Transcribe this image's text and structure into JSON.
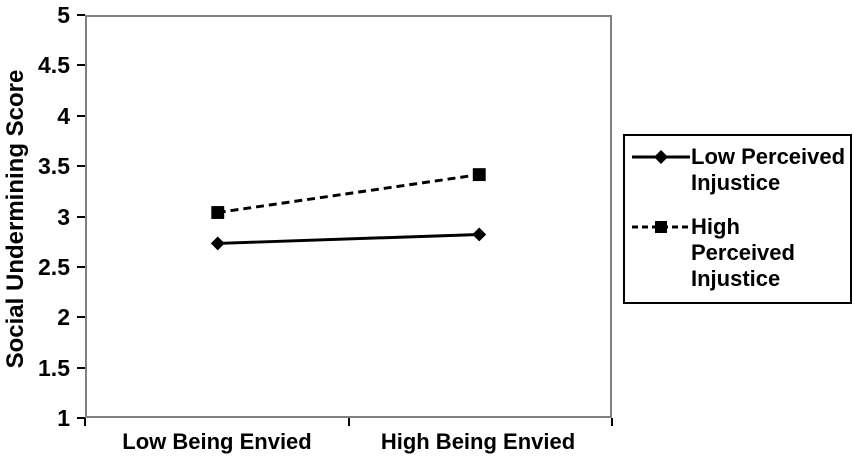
{
  "chart_data": {
    "type": "line",
    "title": "",
    "categories": [
      "Low Being Envied",
      "High Being Envied"
    ],
    "series": [
      {
        "name": "Low Perceived Injustice",
        "legend_label": "Low Perceived\nInjustice",
        "values": [
          2.73,
          2.82
        ],
        "line_style": "solid",
        "marker": "diamond"
      },
      {
        "name": "High Perceived Injustice",
        "legend_label": "High\nPerceived\nInjustice",
        "values": [
          3.04,
          3.42
        ],
        "line_style": "dashed",
        "marker": "square"
      }
    ],
    "xlabel": "",
    "ylabel": "Social Undermining Score",
    "ylim": [
      1,
      5
    ],
    "yticks": [
      1,
      1.5,
      2,
      2.5,
      3,
      3.5,
      4,
      4.5,
      5
    ],
    "grid": false,
    "legend_position": "right",
    "colors": {
      "line": "#000000",
      "plot_border": "#808080",
      "text": "#000000",
      "background": "#ffffff"
    }
  }
}
